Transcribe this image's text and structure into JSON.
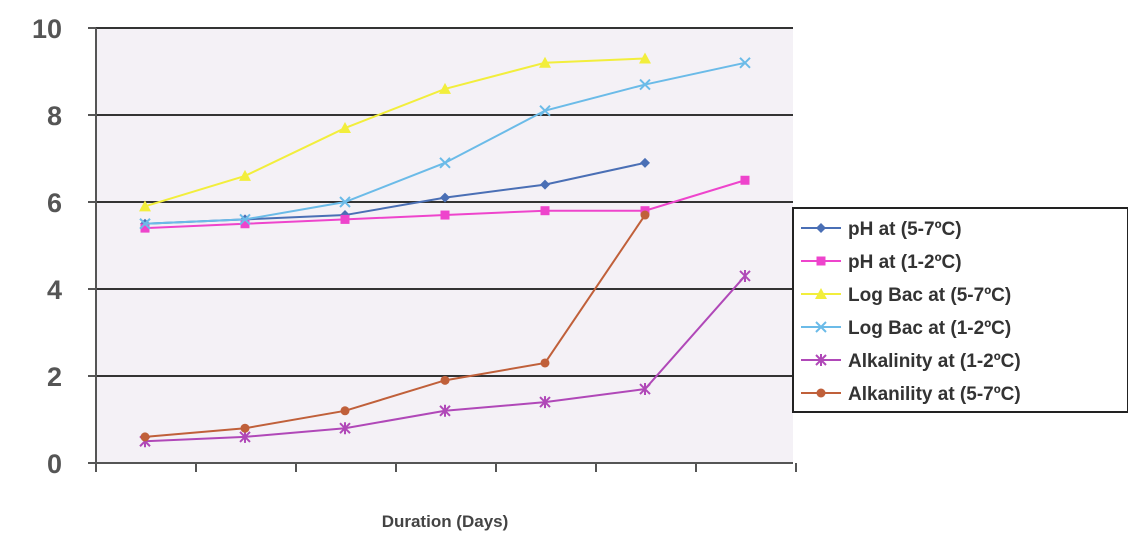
{
  "chart_data": {
    "type": "line",
    "title": "",
    "xlabel": "Duration (Days)",
    "ylabel": "",
    "x_points": 7,
    "ylim": [
      0,
      10
    ],
    "yticks": [
      0,
      2,
      4,
      6,
      8,
      10
    ],
    "grid": true,
    "legend_position": "right",
    "series": [
      {
        "name": "pH at (5-7ºC)",
        "color": "#4a6fb5",
        "marker": "diamond",
        "values": [
          5.5,
          5.6,
          5.7,
          6.1,
          6.4,
          6.9,
          null
        ]
      },
      {
        "name": "pH at (1-2ºC)",
        "color": "#ee44cc",
        "marker": "square",
        "values": [
          5.4,
          5.5,
          5.6,
          5.7,
          5.8,
          5.8,
          6.5
        ]
      },
      {
        "name": "Log Bac at (5-7ºC)",
        "color": "#f2ee3c",
        "marker": "triangle",
        "values": [
          5.9,
          6.6,
          7.7,
          8.6,
          9.2,
          9.3,
          null
        ]
      },
      {
        "name": "Log Bac at (1-2ºC)",
        "color": "#6bbbe8",
        "marker": "x",
        "values": [
          5.5,
          5.6,
          6.0,
          6.9,
          8.1,
          8.7,
          9.2
        ]
      },
      {
        "name": "Alkalinity at (1-2ºC)",
        "color": "#b048b8",
        "marker": "star",
        "values": [
          0.5,
          0.6,
          0.8,
          1.2,
          1.4,
          1.7,
          4.3
        ]
      },
      {
        "name": "Alkanility at (5-7ºC)",
        "color": "#c0603a",
        "marker": "circle",
        "values": [
          0.6,
          0.8,
          1.2,
          1.9,
          2.3,
          5.7,
          null
        ]
      }
    ]
  }
}
